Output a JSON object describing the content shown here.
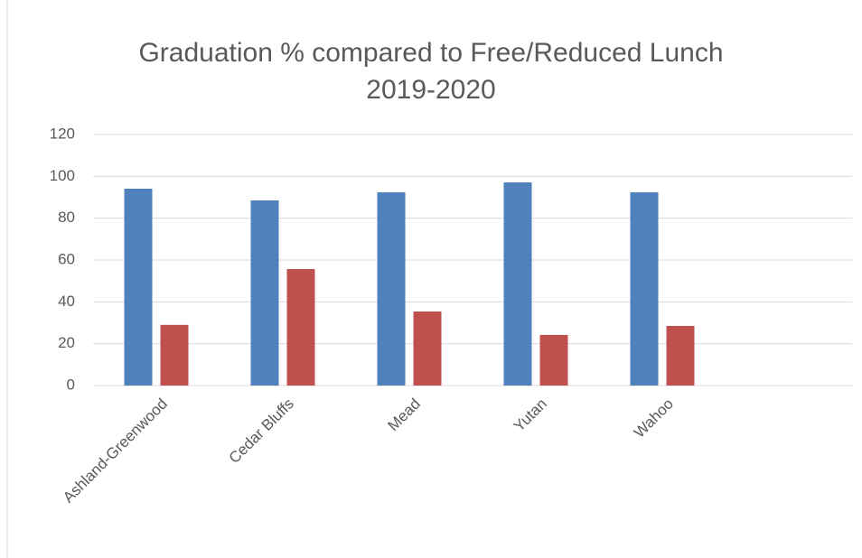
{
  "chart_data": {
    "type": "bar",
    "title": [
      "Graduation % compared to Free/Reduced Lunch",
      "2019-2020"
    ],
    "categories": [
      "Ashland-Greenwood",
      "Cedar Bluffs",
      "Mead",
      "Yutan",
      "Wahoo",
      null
    ],
    "series": [
      {
        "color": "#4f81bd",
        "values": [
          94.1,
          88.5,
          92.4,
          97.1,
          92.4,
          null
        ]
      },
      {
        "color": "#c0504d",
        "values": [
          29,
          55.7,
          35.4,
          24.2,
          28.5,
          null
        ]
      }
    ],
    "ylim": [
      0,
      120
    ],
    "yticks": [
      0,
      20,
      40,
      60,
      80,
      100,
      120
    ],
    "grid": true
  }
}
